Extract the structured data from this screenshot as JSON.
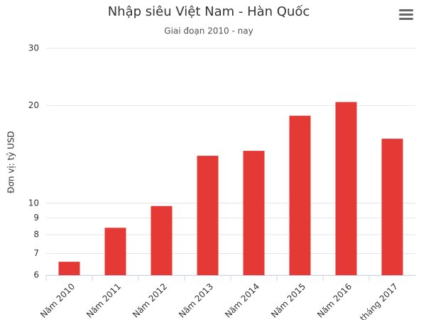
{
  "chart_data": {
    "type": "bar",
    "title": "Nhập siêu Việt Nam - Hàn Quốc",
    "subtitle": "Giai đoạn 2010 - nay",
    "y_label": "Đơn vị: tỷ USD",
    "categories": [
      "Năm 2010",
      "Năm 2011",
      "Năm 2012",
      "Năm 2013",
      "Năm 2014",
      "Năm 2015",
      "Năm 2016",
      "tháng 2017"
    ],
    "values": [
      6.6,
      8.4,
      9.8,
      14.0,
      14.5,
      18.6,
      20.5,
      15.8
    ],
    "color": "#e53935",
    "ylim": [
      6,
      30
    ],
    "yticks": [
      6,
      7,
      8,
      9,
      10,
      20,
      30
    ],
    "log_scale": true,
    "grid": true
  }
}
